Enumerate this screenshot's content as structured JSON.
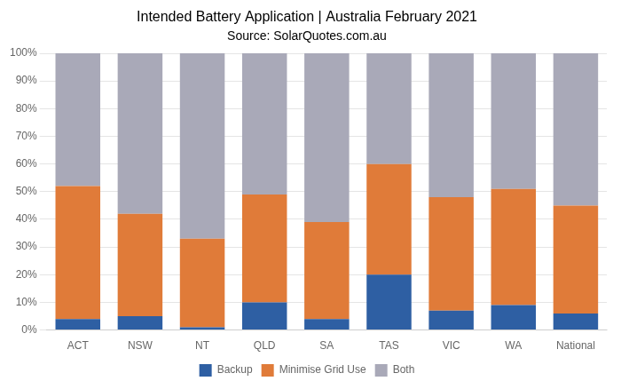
{
  "chart_data": {
    "type": "bar",
    "stacked": true,
    "title": "Intended Battery Application | Australia February 2021",
    "subtitle": "Source: SolarQuotes.com.au",
    "categories": [
      "ACT",
      "NSW",
      "NT",
      "QLD",
      "SA",
      "TAS",
      "VIC",
      "WA",
      "National"
    ],
    "series": [
      {
        "name": "Backup",
        "color": "#2E5FA3",
        "values": [
          4,
          5,
          1,
          10,
          4,
          20,
          7,
          9,
          6
        ]
      },
      {
        "name": "Minimise Grid Use",
        "color": "#E07B39",
        "values": [
          48,
          37,
          32,
          39,
          35,
          40,
          41,
          42,
          39
        ]
      },
      {
        "name": "Both",
        "color": "#A9A9B8",
        "values": [
          48,
          58,
          67,
          51,
          61,
          40,
          52,
          49,
          55
        ]
      }
    ],
    "ylim": [
      0,
      100
    ],
    "yticks": [
      {
        "value": 0,
        "label": "0%"
      },
      {
        "value": 10,
        "label": "10%"
      },
      {
        "value": 20,
        "label": "20%"
      },
      {
        "value": 30,
        "label": "30%"
      },
      {
        "value": 40,
        "label": "40%"
      },
      {
        "value": 50,
        "label": "50%"
      },
      {
        "value": 60,
        "label": "60%"
      },
      {
        "value": 70,
        "label": "70%"
      },
      {
        "value": 80,
        "label": "80%"
      },
      {
        "value": 90,
        "label": "90%"
      },
      {
        "value": 100,
        "label": "100%"
      }
    ],
    "grid": true,
    "legend": "bottom"
  }
}
